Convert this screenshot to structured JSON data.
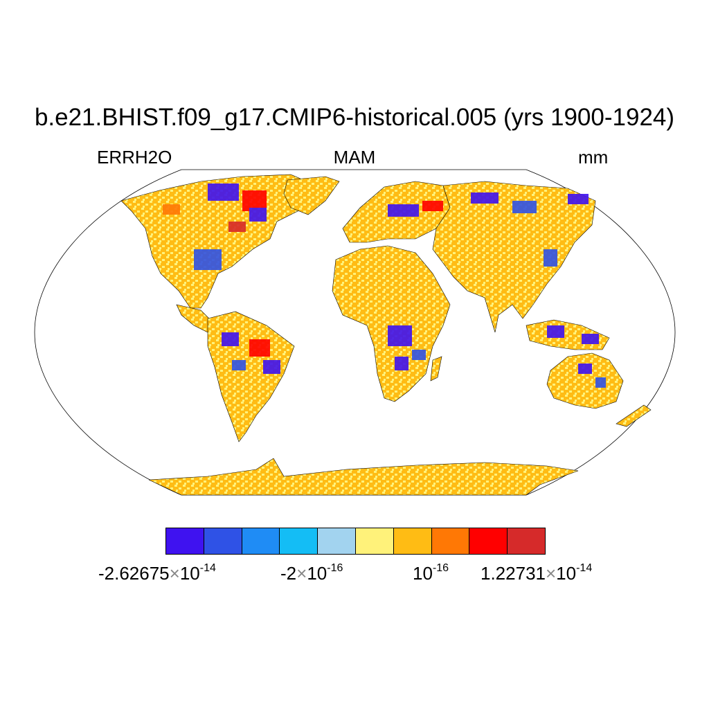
{
  "title": "b.e21.BHIST.f09_g17.CMIP6-historical.005 (yrs 1900-1924)",
  "variable": "ERRH2O",
  "season": "MAM",
  "units": "mm",
  "colorbar": {
    "colors": [
      "#3f12f0",
      "#2f52e6",
      "#1f8cf5",
      "#14bdf5",
      "#a2d3ef",
      "#fff27a",
      "#ffbc14",
      "#ff7805",
      "#ff0000",
      "#d62a2a"
    ],
    "labels": [
      {
        "mantissa": "-2.62675",
        "times": "×",
        "base": "10",
        "exp": "-14"
      },
      {
        "mantissa": "-2",
        "times": "×",
        "base": "10",
        "exp": "-16"
      },
      {
        "mantissa": "",
        "times": "",
        "base": "10",
        "exp": "-16"
      },
      {
        "mantissa": "1.22731",
        "times": "×",
        "base": "10",
        "exp": "-14"
      }
    ]
  },
  "map": {
    "projection": "robinson",
    "land_color": "#ffbc14",
    "ocean_color": "#ffffff"
  }
}
